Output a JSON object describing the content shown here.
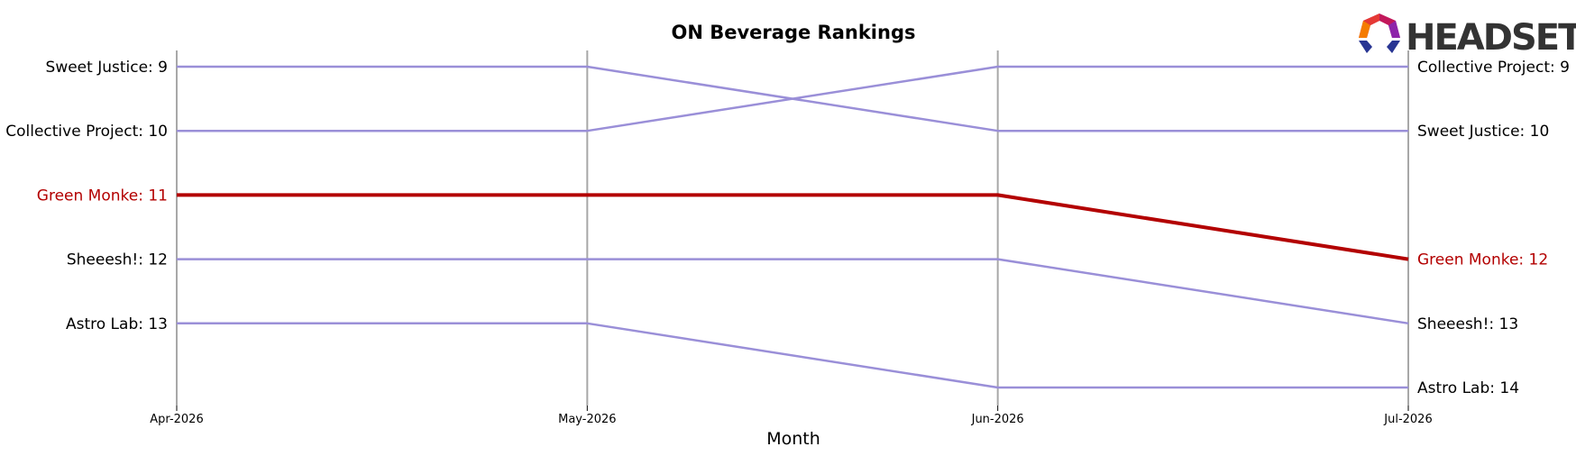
{
  "chart_data": {
    "type": "line",
    "title": "ON Beverage Rankings",
    "xlabel": "Month",
    "ylabel": "",
    "x": [
      "Apr-2026",
      "May-2026",
      "Jun-2026",
      "Jul-2026"
    ],
    "y_scale": "rank (inverted, 1 at top)",
    "ylim": [
      14,
      9
    ],
    "grid": false,
    "highlight_color": "#b30000",
    "series_color": "#9a8fd8",
    "series": [
      {
        "name": "Sweet Justice",
        "values": [
          9,
          9,
          10,
          10
        ],
        "highlight": false
      },
      {
        "name": "Collective Project",
        "values": [
          10,
          10,
          9,
          9
        ],
        "highlight": false
      },
      {
        "name": "Green Monke",
        "values": [
          11,
          11,
          11,
          12
        ],
        "highlight": true
      },
      {
        "name": "Sheeesh!",
        "values": [
          12,
          12,
          12,
          13
        ],
        "highlight": false
      },
      {
        "name": "Astro Lab",
        "values": [
          13,
          13,
          14,
          14
        ],
        "highlight": false
      }
    ],
    "left_labels": [
      {
        "text": "Sweet Justice: 9",
        "rank": 9,
        "highlight": false
      },
      {
        "text": "Collective Project: 10",
        "rank": 10,
        "highlight": false
      },
      {
        "text": "Green Monke: 11",
        "rank": 11,
        "highlight": true
      },
      {
        "text": "Sheeesh!: 12",
        "rank": 12,
        "highlight": false
      },
      {
        "text": "Astro Lab: 13",
        "rank": 13,
        "highlight": false
      }
    ],
    "right_labels": [
      {
        "text": "Collective Project: 9",
        "rank": 9,
        "highlight": false
      },
      {
        "text": "Sweet Justice: 10",
        "rank": 10,
        "highlight": false
      },
      {
        "text": "Green Monke: 12",
        "rank": 12,
        "highlight": true
      },
      {
        "text": "Sheeesh!: 13",
        "rank": 13,
        "highlight": false
      },
      {
        "text": "Astro Lab: 14",
        "rank": 14,
        "highlight": false
      }
    ]
  },
  "logo": {
    "text": "HEADSET",
    "icon": "headset-hexagon-logo-icon"
  }
}
